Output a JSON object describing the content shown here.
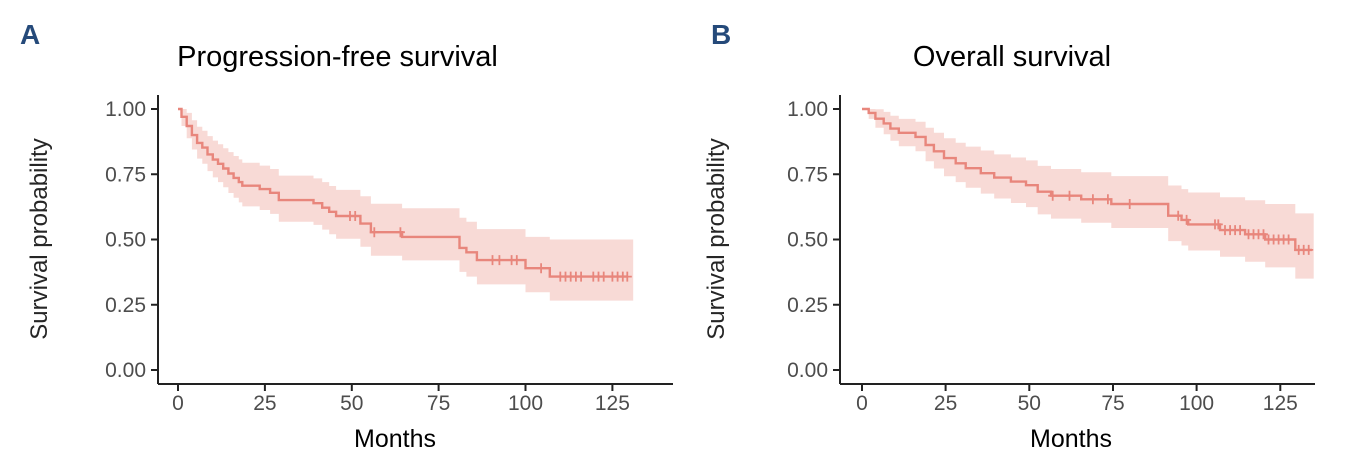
{
  "figure": {
    "panels": [
      {
        "panel_label": "A"
      },
      {
        "panel_label": "B"
      }
    ]
  },
  "colors": {
    "curve": "#E8867C",
    "band": "#F8DAD6",
    "panel_label": "#254A7A",
    "axis": "#222222",
    "tick_label": "#4D4D4D",
    "title": "#000000"
  },
  "chart_data": [
    {
      "type": "line",
      "subtype": "kaplan-meier-step",
      "panel_label": "A",
      "title": "Progression-free survival",
      "xlabel": "Months",
      "ylabel": "Survival probability",
      "x_ticks": [
        0,
        25,
        50,
        75,
        100,
        125
      ],
      "y_ticks": [
        "1.00",
        "0.75",
        "0.50",
        "0.25",
        "0.00"
      ],
      "xlim": [
        0,
        131
      ],
      "ylim": [
        0,
        1
      ],
      "grid": false,
      "legend": "none",
      "steps": [
        {
          "t": 0,
          "s": 1.0,
          "lo": 1.0,
          "hi": 1.0
        },
        {
          "t": 1,
          "s": 0.97,
          "lo": 0.935,
          "hi": 1.0
        },
        {
          "t": 2.5,
          "s": 0.935,
          "lo": 0.888,
          "hi": 0.985
        },
        {
          "t": 4,
          "s": 0.9,
          "lo": 0.845,
          "hi": 0.957
        },
        {
          "t": 5.5,
          "s": 0.87,
          "lo": 0.81,
          "hi": 0.932
        },
        {
          "t": 7,
          "s": 0.852,
          "lo": 0.79,
          "hi": 0.917
        },
        {
          "t": 8.5,
          "s": 0.826,
          "lo": 0.762,
          "hi": 0.896
        },
        {
          "t": 10,
          "s": 0.806,
          "lo": 0.738,
          "hi": 0.879
        },
        {
          "t": 11.5,
          "s": 0.79,
          "lo": 0.72,
          "hi": 0.865
        },
        {
          "t": 13,
          "s": 0.772,
          "lo": 0.7,
          "hi": 0.85
        },
        {
          "t": 14.5,
          "s": 0.753,
          "lo": 0.678,
          "hi": 0.835
        },
        {
          "t": 16,
          "s": 0.736,
          "lo": 0.66,
          "hi": 0.82
        },
        {
          "t": 17.5,
          "s": 0.72,
          "lo": 0.642,
          "hi": 0.807
        },
        {
          "t": 18.5,
          "s": 0.706,
          "lo": 0.627,
          "hi": 0.794
        },
        {
          "t": 23.5,
          "s": 0.693,
          "lo": 0.613,
          "hi": 0.783
        },
        {
          "t": 26.5,
          "s": 0.679,
          "lo": 0.598,
          "hi": 0.77
        },
        {
          "t": 29,
          "s": 0.651,
          "lo": 0.568,
          "hi": 0.745
        },
        {
          "t": 39,
          "s": 0.639,
          "lo": 0.556,
          "hi": 0.734
        },
        {
          "t": 41.5,
          "s": 0.622,
          "lo": 0.538,
          "hi": 0.72
        },
        {
          "t": 43.5,
          "s": 0.606,
          "lo": 0.52,
          "hi": 0.705
        },
        {
          "t": 45.5,
          "s": 0.59,
          "lo": 0.503,
          "hi": 0.69
        },
        {
          "t": 52.5,
          "s": 0.561,
          "lo": 0.472,
          "hi": 0.666
        },
        {
          "t": 55.5,
          "s": 0.528,
          "lo": 0.438,
          "hi": 0.637
        },
        {
          "t": 64.5,
          "s": 0.51,
          "lo": 0.42,
          "hi": 0.62
        },
        {
          "t": 81,
          "s": 0.468,
          "lo": 0.376,
          "hi": 0.583
        },
        {
          "t": 83,
          "s": 0.451,
          "lo": 0.358,
          "hi": 0.568
        },
        {
          "t": 86,
          "s": 0.421,
          "lo": 0.328,
          "hi": 0.54
        },
        {
          "t": 100,
          "s": 0.39,
          "lo": 0.298,
          "hi": 0.51
        },
        {
          "t": 107,
          "s": 0.358,
          "lo": 0.266,
          "hi": 0.5
        }
      ],
      "censor_times": [
        49.5,
        51,
        56.5,
        64,
        90.5,
        92.5,
        96,
        97.5,
        104.5,
        110,
        111.5,
        113,
        114.5,
        116,
        119.5,
        121,
        122.5,
        125,
        126.5,
        128,
        129.3
      ],
      "end_time": 129.5,
      "band_end_time": 131
    },
    {
      "type": "line",
      "subtype": "kaplan-meier-step",
      "panel_label": "B",
      "title": "Overall survival",
      "xlabel": "Months",
      "ylabel": "Survival probability",
      "x_ticks": [
        0,
        25,
        50,
        75,
        100,
        125
      ],
      "y_ticks": [
        "1.00",
        "0.75",
        "0.50",
        "0.25",
        "0.00"
      ],
      "xlim": [
        0,
        135
      ],
      "ylim": [
        0,
        1
      ],
      "grid": false,
      "legend": "none",
      "steps": [
        {
          "t": 0,
          "s": 1.0,
          "lo": 1.0,
          "hi": 1.0
        },
        {
          "t": 2,
          "s": 0.985,
          "lo": 0.962,
          "hi": 1.0
        },
        {
          "t": 4,
          "s": 0.963,
          "lo": 0.928,
          "hi": 0.999
        },
        {
          "t": 6.5,
          "s": 0.945,
          "lo": 0.903,
          "hi": 0.989
        },
        {
          "t": 8.5,
          "s": 0.925,
          "lo": 0.878,
          "hi": 0.974
        },
        {
          "t": 11,
          "s": 0.909,
          "lo": 0.857,
          "hi": 0.962
        },
        {
          "t": 16,
          "s": 0.893,
          "lo": 0.838,
          "hi": 0.951
        },
        {
          "t": 19,
          "s": 0.862,
          "lo": 0.8,
          "hi": 0.928
        },
        {
          "t": 21.5,
          "s": 0.838,
          "lo": 0.772,
          "hi": 0.909
        },
        {
          "t": 24.5,
          "s": 0.812,
          "lo": 0.742,
          "hi": 0.888
        },
        {
          "t": 28,
          "s": 0.792,
          "lo": 0.72,
          "hi": 0.871
        },
        {
          "t": 31,
          "s": 0.773,
          "lo": 0.698,
          "hi": 0.856
        },
        {
          "t": 35.5,
          "s": 0.754,
          "lo": 0.676,
          "hi": 0.841
        },
        {
          "t": 39.5,
          "s": 0.737,
          "lo": 0.657,
          "hi": 0.826
        },
        {
          "t": 44.5,
          "s": 0.722,
          "lo": 0.64,
          "hi": 0.814
        },
        {
          "t": 49,
          "s": 0.708,
          "lo": 0.624,
          "hi": 0.803
        },
        {
          "t": 52.5,
          "s": 0.683,
          "lo": 0.596,
          "hi": 0.782
        },
        {
          "t": 56.5,
          "s": 0.668,
          "lo": 0.58,
          "hi": 0.77
        },
        {
          "t": 65.5,
          "s": 0.654,
          "lo": 0.564,
          "hi": 0.758
        },
        {
          "t": 74.5,
          "s": 0.636,
          "lo": 0.544,
          "hi": 0.743
        },
        {
          "t": 91.5,
          "s": 0.591,
          "lo": 0.494,
          "hi": 0.707
        },
        {
          "t": 95.5,
          "s": 0.575,
          "lo": 0.477,
          "hi": 0.693
        },
        {
          "t": 97.5,
          "s": 0.558,
          "lo": 0.458,
          "hi": 0.68
        },
        {
          "t": 107,
          "s": 0.536,
          "lo": 0.434,
          "hi": 0.662
        },
        {
          "t": 114.5,
          "s": 0.52,
          "lo": 0.415,
          "hi": 0.65
        },
        {
          "t": 120.5,
          "s": 0.5,
          "lo": 0.393,
          "hi": 0.636
        },
        {
          "t": 129.5,
          "s": 0.46,
          "lo": 0.35,
          "hi": 0.6
        }
      ],
      "censor_times": [
        57,
        62,
        69,
        73.5,
        80,
        94.5,
        97,
        105.5,
        106.5,
        108.5,
        110,
        111.5,
        113,
        115.5,
        117,
        118.5,
        120,
        121.5,
        123,
        124.5,
        126,
        127.5,
        130.5,
        132,
        133.5
      ],
      "end_time": 134.5,
      "band_end_time": 135
    }
  ]
}
